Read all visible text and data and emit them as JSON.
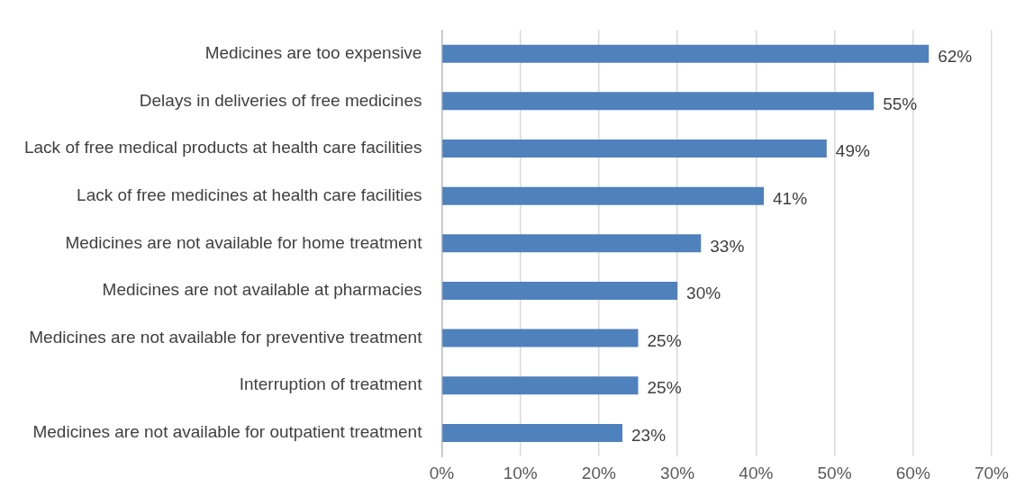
{
  "chart_data": {
    "type": "bar",
    "orientation": "horizontal",
    "categories": [
      "Medicines are too expensive",
      "Delays in deliveries of free medicines",
      "Lack of free medical products at health care facilities",
      "Lack of free medicines at health care facilities",
      "Medicines are not available for home treatment",
      "Medicines are not available at pharmacies",
      "Medicines are not available for preventive treatment",
      "Interruption of treatment",
      "Medicines are not available for outpatient treatment"
    ],
    "values": [
      62,
      55,
      49,
      41,
      33,
      30,
      25,
      25,
      23
    ],
    "value_labels": [
      "62%",
      "55%",
      "49%",
      "41%",
      "33%",
      "30%",
      "25%",
      "25%",
      "23%"
    ],
    "color": "#4f81bd",
    "xlim": [
      0,
      70
    ],
    "xticks": [
      {
        "value": 0,
        "label": "0%"
      },
      {
        "value": 10,
        "label": "10%"
      },
      {
        "value": 20,
        "label": "20%"
      },
      {
        "value": 30,
        "label": "30%"
      },
      {
        "value": 40,
        "label": "40%"
      },
      {
        "value": 50,
        "label": "50%"
      },
      {
        "value": 60,
        "label": "60%"
      },
      {
        "value": 70,
        "label": "70%"
      }
    ],
    "grid": "x",
    "legend": false
  }
}
